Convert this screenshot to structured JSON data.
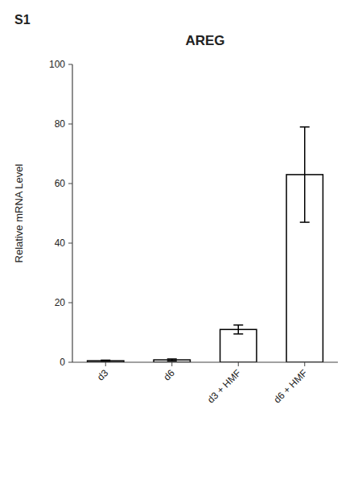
{
  "chart_data": {
    "type": "bar",
    "title": "AREG",
    "ylabel": "Relative mRNA Level",
    "annotation": "S1",
    "categories": [
      "d3",
      "d6",
      "d3 + HMF",
      "d6 + HMF"
    ],
    "values": [
      0.5,
      0.8,
      11.0,
      63.0
    ],
    "errors": [
      0.2,
      0.3,
      1.5,
      16.0
    ],
    "color": "#ffffff",
    "ylim": [
      0,
      100
    ],
    "yticks": [
      0,
      20,
      40,
      60,
      80,
      100
    ],
    "grid": false
  }
}
